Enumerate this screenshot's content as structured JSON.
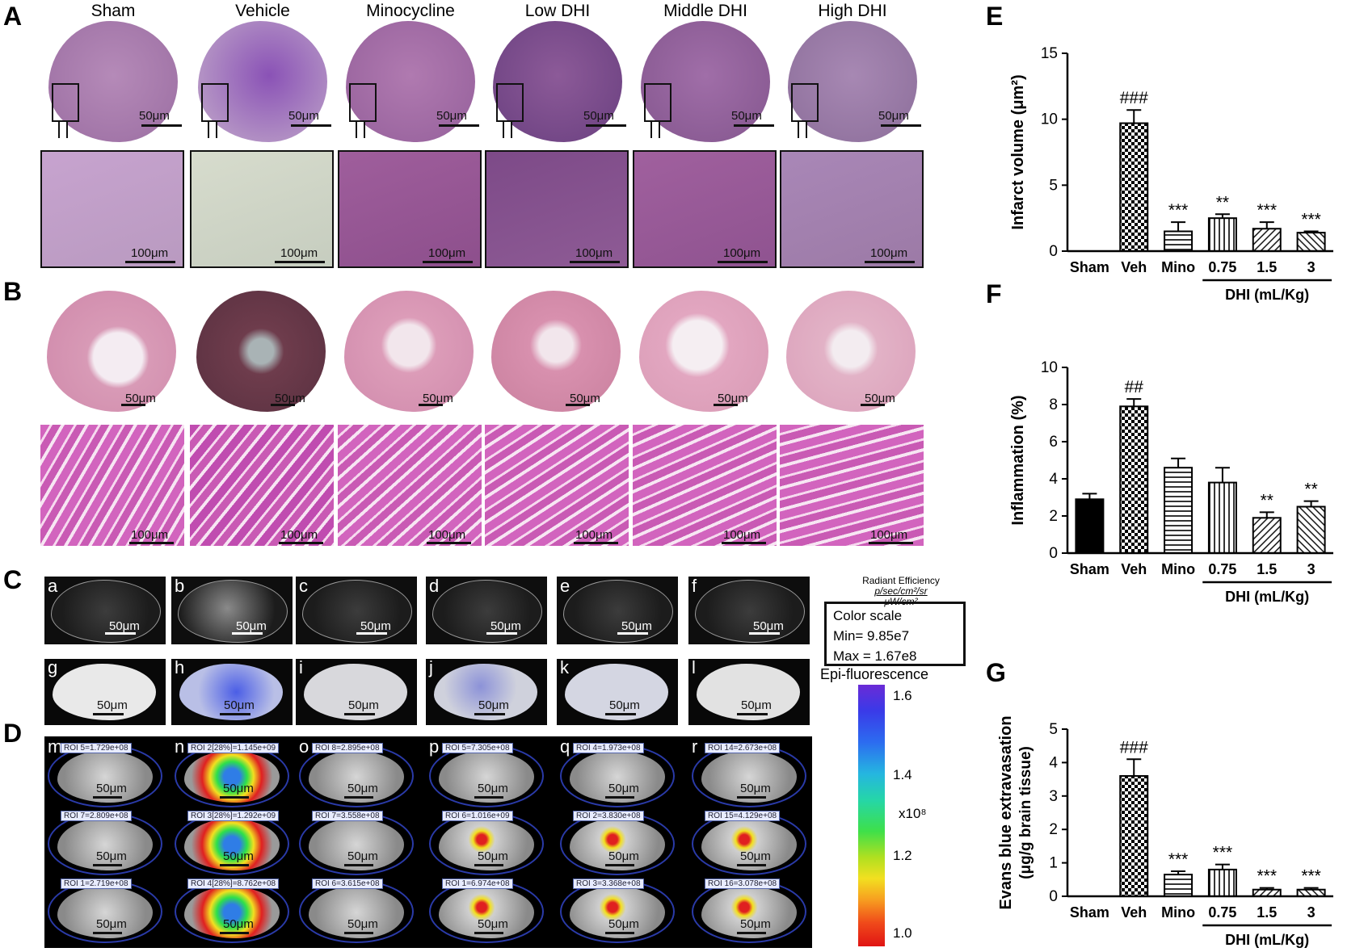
{
  "panelA": {
    "letter": "A",
    "groups": [
      "Sham",
      "Vehicle",
      "Minocycline",
      "Low DHI",
      "Middle DHI",
      "High DHI"
    ],
    "scale_top": "50μm",
    "scale_bottom": "100μm"
  },
  "panelB": {
    "letter": "B",
    "scale_top": "50μm",
    "scale_bottom": "100μm"
  },
  "panelC": {
    "letter": "C",
    "subs": [
      "a",
      "b",
      "c",
      "d",
      "e",
      "f"
    ],
    "subs2": [
      "g",
      "h",
      "i",
      "j",
      "k",
      "l"
    ],
    "scale": "50μm"
  },
  "panelD": {
    "letter": "D",
    "subs": [
      "m",
      "n",
      "o",
      "p",
      "q",
      "r"
    ],
    "scale": "50μm",
    "roi": [
      [
        "ROI 5=1.729e+08",
        "ROI 7=2.809e+08",
        "ROI 1=2.719e+08"
      ],
      [
        "ROI 2[28%]=1.145e+09",
        "ROI 3[28%]=1.292e+09",
        "ROI 4[28%]=8.762e+08"
      ],
      [
        "ROI 8=2.895e+08",
        "ROI 7=3.558e+08",
        "ROI 6=3.615e+08"
      ],
      [
        "ROI 5=7.305e+08",
        "ROI 6=1.016e+09",
        "ROI 1=6.974e+08"
      ],
      [
        "ROI 4=1.973e+08",
        "ROI 2=3.830e+08",
        "ROI 3=3.368e+08"
      ],
      [
        "ROI 14=2.673e+08",
        "ROI 15=4.129e+08",
        "ROI 16=3.078e+08"
      ]
    ]
  },
  "colorscale": {
    "header1": "Radiant Efficiency",
    "header2": "p/sec/cm²/sr",
    "header3": "μW/cm²",
    "title": "Color scale",
    "min": "Min= 9.85e7",
    "max": "Max = 1.67e8",
    "mode": "Epi-fluorescence",
    "ticks": [
      "1.6",
      "1.4",
      "1.2",
      "1.0"
    ],
    "multiplier": "x10⁸"
  },
  "colors": {
    "bar_fill": "#ffffff",
    "bar_stroke": "#000000",
    "sham_fill": "#000000"
  },
  "chart_data": [
    {
      "panel": "E",
      "type": "bar",
      "categories": [
        "Sham",
        "Veh",
        "Mino",
        "0.75",
        "1.5",
        "3"
      ],
      "values": [
        0,
        9.7,
        1.5,
        2.5,
        1.7,
        1.4
      ],
      "errors": [
        0,
        1.0,
        0.7,
        0.3,
        0.5,
        0.1
      ],
      "annotations": [
        "",
        "###",
        "***",
        "**",
        "***",
        "***"
      ],
      "patterns": [
        "solid",
        "checker",
        "hlines",
        "vlines",
        "diag",
        "diag2"
      ],
      "ylabel": "Infarct volume (μm²)",
      "ylim": [
        0,
        15
      ],
      "yticks": [
        0,
        5,
        10,
        15
      ],
      "group_label": "DHI (mL/Kg)"
    },
    {
      "panel": "F",
      "type": "bar",
      "categories": [
        "Sham",
        "Veh",
        "Mino",
        "0.75",
        "1.5",
        "3"
      ],
      "values": [
        2.9,
        7.9,
        4.6,
        3.8,
        1.9,
        2.5
      ],
      "errors": [
        0.3,
        0.4,
        0.5,
        0.8,
        0.3,
        0.3
      ],
      "annotations": [
        "",
        "##",
        "",
        "",
        "**",
        "**"
      ],
      "patterns": [
        "solid",
        "checker",
        "hlines",
        "vlines",
        "diag",
        "diag2"
      ],
      "ylabel": "Inflammation  (%)",
      "ylim": [
        0,
        10
      ],
      "yticks": [
        0,
        2,
        4,
        6,
        8,
        10
      ],
      "group_label": "DHI (mL/Kg)"
    },
    {
      "panel": "G",
      "type": "bar",
      "categories": [
        "Sham",
        "Veh",
        "Mino",
        "0.75",
        "1.5",
        "3"
      ],
      "values": [
        0,
        3.6,
        0.65,
        0.8,
        0.2,
        0.2
      ],
      "errors": [
        0,
        0.5,
        0.1,
        0.15,
        0.05,
        0.05
      ],
      "annotations": [
        "",
        "###",
        "***",
        "***",
        "***",
        "***"
      ],
      "patterns": [
        "solid",
        "checker",
        "hlines",
        "vlines",
        "diag",
        "diag2"
      ],
      "ylabel": "Evans blue extravasation",
      "ylabel2": "(μg/g brain tissue)",
      "ylim": [
        0,
        5
      ],
      "yticks": [
        0,
        1,
        2,
        3,
        4,
        5
      ],
      "group_label": "DHI (mL/Kg)"
    }
  ]
}
